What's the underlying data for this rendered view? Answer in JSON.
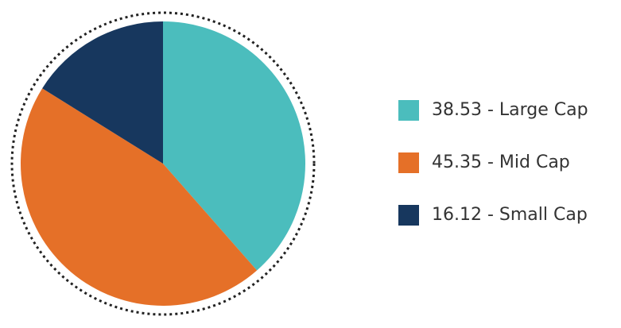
{
  "chart_data": {
    "type": "pie",
    "categories": [
      "38.53 - Large Cap",
      "45.35 - Mid Cap",
      "16.12 - Small Cap"
    ],
    "values": [
      38.53,
      45.35,
      16.12
    ],
    "colors": [
      "#4bbdbd",
      "#e57028",
      "#17375e"
    ]
  }
}
